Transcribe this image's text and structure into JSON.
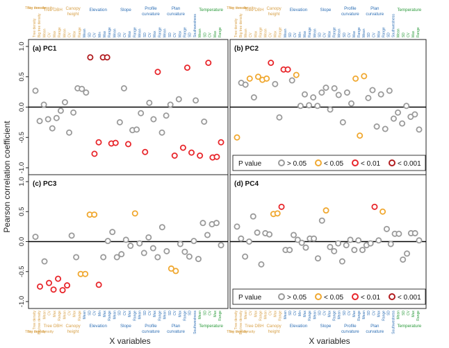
{
  "figure": {
    "y_axis_title": "Pearson correlation coefficient",
    "x_axis_title": "X variables"
  },
  "colors": {
    "gray": "#9a9a9a",
    "orange": "#f0a830",
    "red": "#e8262b",
    "darkred": "#b01b1e",
    "tan": "#d8a24a",
    "blue": "#2e6fb5",
    "green": "#2a9a3a",
    "axis": "#222222"
  },
  "variable_labels": [
    "Tree density",
    "Big tree density",
    "Mean",
    "CV",
    "Max",
    "Range",
    "Mean",
    "CV",
    "Max",
    "Range",
    "Mean",
    "SD",
    "CV",
    "Min",
    "Max",
    "Range",
    "Mean",
    "SD",
    "CV",
    "Max",
    "Range",
    "Mean",
    "SD",
    "CV",
    "Max",
    "Range",
    "Mean",
    "SD",
    "CV",
    "Max",
    "Range",
    "SD",
    "Southwestness",
    "Mean",
    "SD",
    "CV",
    "Max",
    "Range"
  ],
  "variable_label_colors": [
    "tan",
    "tan",
    "tan",
    "tan",
    "tan",
    "tan",
    "tan",
    "tan",
    "tan",
    "tan",
    "blue",
    "blue",
    "blue",
    "blue",
    "blue",
    "blue",
    "blue",
    "blue",
    "blue",
    "blue",
    "blue",
    "blue",
    "blue",
    "blue",
    "blue",
    "blue",
    "blue",
    "blue",
    "blue",
    "blue",
    "blue",
    "blue",
    "blue",
    "green",
    "green",
    "green",
    "green",
    "green"
  ],
  "groups": [
    {
      "lines": [
        "Tree density",
        "Big tree density"
      ],
      "color": "tan",
      "from": 0,
      "to": 1,
      "single": true
    },
    {
      "lines": [
        "Tree DBH"
      ],
      "color": "tan",
      "from": 2,
      "to": 5
    },
    {
      "lines": [
        "Canopy",
        "height"
      ],
      "color": "tan",
      "from": 6,
      "to": 9
    },
    {
      "lines": [
        "Elevation"
      ],
      "color": "blue",
      "from": 10,
      "to": 15
    },
    {
      "lines": [
        "Slope"
      ],
      "color": "blue",
      "from": 16,
      "to": 20
    },
    {
      "lines": [
        "Profile",
        "curvature"
      ],
      "color": "blue",
      "from": 21,
      "to": 25
    },
    {
      "lines": [
        "Plan",
        "curvature"
      ],
      "color": "blue",
      "from": 26,
      "to": 30
    },
    {
      "lines": [
        "Temperature"
      ],
      "color": "green",
      "from": 33,
      "to": 37
    }
  ],
  "legend": {
    "title": "P value",
    "entries": [
      {
        "label": "> 0.05",
        "color": "gray"
      },
      {
        "label": "< 0.05",
        "color": "orange"
      },
      {
        "label": "< 0.01",
        "color": "red"
      },
      {
        "label": "< 0.001",
        "color": "darkred"
      }
    ]
  },
  "chart_data": [
    {
      "type": "scatter",
      "title": "(a) PC1",
      "ylim": [
        -1.0,
        1.0
      ],
      "yticks": [
        "-1.0",
        "-0.5",
        "0.0",
        "0.5",
        "1.0"
      ],
      "reference_line": 0,
      "values": [
        0.27,
        -0.23,
        0.04,
        -0.2,
        -0.35,
        -0.18,
        -0.06,
        0.08,
        -0.42,
        -0.09,
        0.31,
        0.3,
        0.24,
        0.82,
        -0.77,
        -0.58,
        0.82,
        0.82,
        -0.6,
        -0.59,
        -0.25,
        0.31,
        -0.61,
        -0.38,
        -0.37,
        -0.1,
        -0.74,
        0.07,
        -0.2,
        0.58,
        -0.42,
        -0.14,
        0.04,
        -0.8,
        0.13,
        -0.67,
        0.65,
        -0.75,
        0.11,
        -0.8,
        -0.24,
        0.73,
        -0.83,
        -0.82,
        -0.58
      ],
      "significance": [
        "gray",
        "gray",
        "gray",
        "gray",
        "gray",
        "gray",
        "gray",
        "gray",
        "gray",
        "gray",
        "gray",
        "gray",
        "gray",
        "darkred",
        "red",
        "red",
        "darkred",
        "darkred",
        "red",
        "red",
        "gray",
        "gray",
        "red",
        "gray",
        "gray",
        "gray",
        "red",
        "gray",
        "gray",
        "red",
        "gray",
        "gray",
        "gray",
        "red",
        "gray",
        "red",
        "red",
        "red",
        "gray",
        "red",
        "gray",
        "red",
        "red",
        "red",
        "red"
      ]
    },
    {
      "type": "scatter",
      "title": "(b) PC2",
      "ylim": [
        -1.0,
        1.0
      ],
      "yticks": [
        "-1.0",
        "-0.5",
        "0.0",
        "0.5",
        "1.0"
      ],
      "reference_line": 0,
      "values": [
        -0.5,
        0.4,
        0.37,
        0.47,
        0.16,
        0.5,
        0.45,
        0.47,
        0.73,
        0.38,
        -0.17,
        0.62,
        0.62,
        0.44,
        0.53,
        0.02,
        0.21,
        0.03,
        0.16,
        0.02,
        0.24,
        0.32,
        -0.04,
        0.31,
        0.2,
        -0.25,
        0.24,
        0.06,
        0.47,
        -0.47,
        0.51,
        0.15,
        0.28,
        -0.32,
        0.21,
        -0.36,
        0.27,
        -0.19,
        -0.09,
        -0.27,
        0.02,
        -0.16,
        -0.12,
        -0.37
      ],
      "significance": [
        "orange",
        "gray",
        "gray",
        "orange",
        "gray",
        "orange",
        "orange",
        "orange",
        "red",
        "gray",
        "gray",
        "red",
        "red",
        "gray",
        "orange",
        "gray",
        "gray",
        "gray",
        "gray",
        "gray",
        "gray",
        "gray",
        "gray",
        "gray",
        "gray",
        "gray",
        "gray",
        "gray",
        "orange",
        "orange",
        "orange",
        "gray",
        "gray",
        "gray",
        "gray",
        "gray",
        "gray",
        "gray",
        "gray",
        "gray",
        "gray",
        "gray",
        "gray",
        "gray"
      ]
    },
    {
      "type": "scatter",
      "title": "(c) PC3",
      "ylim": [
        -1.0,
        1.0
      ],
      "yticks": [
        "-1.0",
        "-0.5",
        "0.0",
        "0.5",
        "1.0"
      ],
      "reference_line": 0,
      "values": [
        0.08,
        -0.75,
        -0.33,
        -0.69,
        -0.8,
        -0.62,
        -0.81,
        -0.73,
        0.1,
        -0.26,
        -0.54,
        -0.54,
        0.45,
        0.45,
        -0.72,
        -0.26,
        0.01,
        0.16,
        -0.26,
        -0.21,
        0.03,
        -0.07,
        0.47,
        -0.03,
        -0.19,
        0.07,
        -0.11,
        -0.26,
        0.24,
        -0.16,
        -0.45,
        -0.49,
        -0.04,
        -0.17,
        -0.25,
        0.01,
        -0.29,
        0.31,
        0.11,
        0.29,
        0.31,
        -0.06
      ],
      "significance": [
        "gray",
        "red",
        "gray",
        "red",
        "red",
        "red",
        "red",
        "red",
        "gray",
        "gray",
        "orange",
        "orange",
        "orange",
        "orange",
        "red",
        "gray",
        "gray",
        "gray",
        "gray",
        "gray",
        "gray",
        "gray",
        "orange",
        "gray",
        "gray",
        "gray",
        "gray",
        "gray",
        "gray",
        "gray",
        "orange",
        "orange",
        "gray",
        "gray",
        "gray",
        "gray",
        "gray",
        "gray",
        "gray",
        "gray",
        "gray",
        "gray"
      ]
    },
    {
      "type": "scatter",
      "title": "(d) PC4",
      "ylim": [
        -1.0,
        1.0
      ],
      "yticks": [
        "-1.0",
        "-0.5",
        "0.0",
        "0.5",
        "1.0"
      ],
      "reference_line": 0,
      "values": [
        0.25,
        0.05,
        -0.25,
        0.0,
        0.42,
        0.15,
        -0.38,
        0.14,
        0.12,
        0.46,
        0.47,
        0.58,
        -0.14,
        -0.14,
        0.11,
        0.03,
        -0.02,
        -0.1,
        0.05,
        0.05,
        -0.28,
        0.35,
        0.52,
        -0.09,
        -0.16,
        -0.03,
        -0.33,
        -0.06,
        0.03,
        -0.14,
        0.02,
        -0.14,
        -0.06,
        -0.03,
        0.58,
        0.02,
        0.5,
        0.21,
        -0.04,
        0.13,
        0.13,
        -0.3,
        -0.2,
        0.14,
        0.14,
        0.02
      ],
      "significance": [
        "gray",
        "gray",
        "gray",
        "gray",
        "gray",
        "gray",
        "gray",
        "gray",
        "gray",
        "orange",
        "orange",
        "red",
        "gray",
        "gray",
        "gray",
        "gray",
        "gray",
        "gray",
        "gray",
        "gray",
        "gray",
        "gray",
        "orange",
        "gray",
        "gray",
        "gray",
        "gray",
        "gray",
        "gray",
        "gray",
        "gray",
        "gray",
        "gray",
        "gray",
        "red",
        "gray",
        "orange",
        "gray",
        "gray",
        "gray",
        "gray",
        "gray",
        "gray",
        "gray",
        "gray",
        "gray"
      ]
    }
  ]
}
